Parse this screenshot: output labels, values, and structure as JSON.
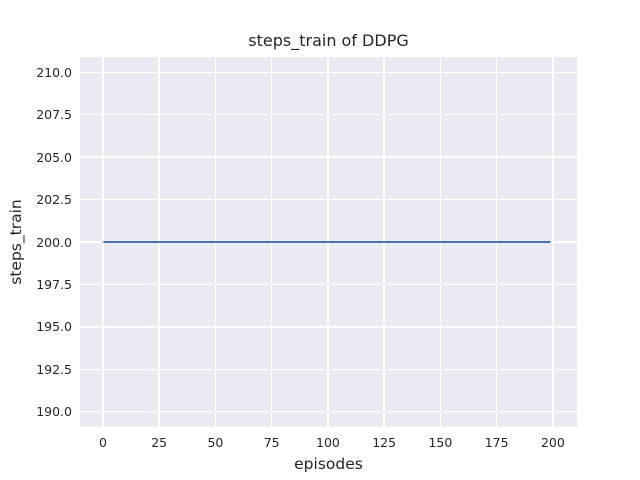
{
  "chart_data": {
    "type": "line",
    "title": "steps_train of DDPG",
    "xlabel": "episodes",
    "ylabel": "steps_train",
    "xlim": [
      -10.2,
      210.7
    ],
    "ylim": [
      189.1,
      210.9
    ],
    "grid": true,
    "legend": "none",
    "xticks": {
      "values": [
        0,
        25,
        50,
        75,
        100,
        125,
        150,
        175,
        200
      ],
      "labels": [
        "0",
        "25",
        "50",
        "75",
        "100",
        "125",
        "150",
        "175",
        "200"
      ]
    },
    "yticks": {
      "values": [
        190,
        192.5,
        195,
        197.5,
        200,
        202.5,
        205,
        207.5,
        210
      ],
      "labels": [
        "190.0",
        "192.5",
        "195.0",
        "197.5",
        "200.0",
        "202.5",
        "205.0",
        "207.5",
        "210.0"
      ]
    },
    "series": [
      {
        "name": "steps_train",
        "x_start": 0,
        "x_end": 199,
        "y_constant": 200,
        "color": "#4C72B0"
      }
    ],
    "colors": {
      "figure_bg": "#FFFFFF",
      "plot_bg": "#EAEAF2",
      "grid": "#FFFFFF",
      "text": "#262626",
      "line": "#4C72B0"
    }
  }
}
